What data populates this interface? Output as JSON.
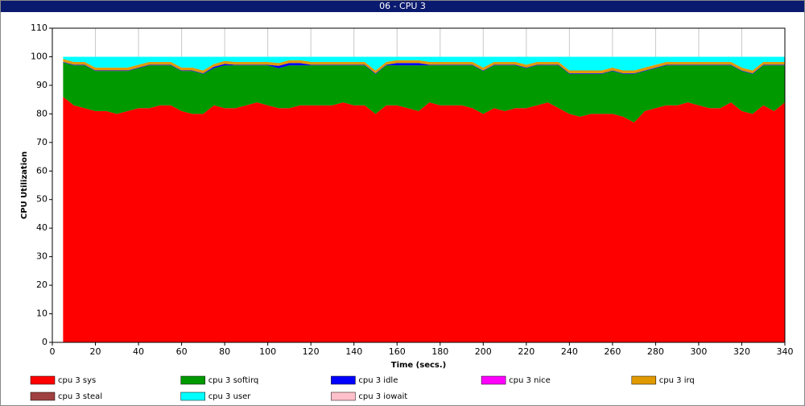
{
  "chart_data": {
    "type": "stacked_area",
    "title": "06 - CPU 3",
    "x_label": "Time (secs.)",
    "y_label": "CPU Utilization",
    "x": [
      5,
      10,
      15,
      20,
      25,
      30,
      35,
      40,
      45,
      50,
      55,
      60,
      65,
      70,
      75,
      80,
      85,
      90,
      95,
      100,
      105,
      110,
      115,
      120,
      125,
      130,
      135,
      140,
      145,
      150,
      155,
      160,
      165,
      170,
      175,
      180,
      185,
      190,
      195,
      200,
      205,
      210,
      215,
      220,
      225,
      230,
      235,
      240,
      245,
      250,
      255,
      260,
      265,
      270,
      275,
      280,
      285,
      290,
      295,
      300,
      305,
      310,
      315,
      320,
      325,
      330,
      335,
      340
    ],
    "xlim": [
      0,
      340
    ],
    "xticks": [
      0,
      20,
      40,
      60,
      80,
      100,
      120,
      140,
      160,
      180,
      200,
      220,
      240,
      260,
      280,
      300,
      320,
      340
    ],
    "ylim": [
      0,
      110
    ],
    "yticks": [
      0,
      10,
      20,
      30,
      40,
      50,
      60,
      70,
      80,
      90,
      100,
      110
    ],
    "grid": true,
    "series": [
      {
        "name": "cpu 3 sys",
        "color": "#ff0000",
        "values": [
          86,
          83,
          82,
          81,
          81,
          80,
          81,
          82,
          82,
          83,
          83,
          81,
          80,
          80,
          83,
          82,
          82,
          83,
          84,
          83,
          82,
          82,
          83,
          83,
          83,
          83,
          84,
          83,
          83,
          80,
          83,
          83,
          82,
          81,
          84,
          83,
          83,
          83,
          82,
          80,
          82,
          81,
          82,
          82,
          83,
          84,
          82,
          80,
          79,
          80,
          80,
          80,
          79,
          77,
          81,
          82,
          83,
          83,
          84,
          83,
          82,
          82,
          84,
          81,
          80,
          83,
          81,
          84
        ]
      },
      {
        "name": "cpu 3 softirq",
        "color": "#009900",
        "values": [
          12,
          14,
          15,
          14,
          14,
          15,
          14,
          14,
          15,
          14,
          14,
          14,
          15,
          14,
          13,
          15,
          15,
          14,
          13,
          14,
          14,
          15,
          14,
          14,
          14,
          14,
          13,
          14,
          14,
          14,
          14,
          14,
          15,
          16,
          13,
          14,
          14,
          14,
          15,
          15,
          15,
          16,
          15,
          14,
          14,
          13,
          15,
          14,
          15,
          14,
          14,
          15,
          15,
          17,
          14,
          14,
          14,
          14,
          13,
          14,
          15,
          15,
          13,
          14,
          14,
          14,
          16,
          13
        ]
      },
      {
        "name": "cpu 3 idle",
        "color": "#0000ff",
        "values": [
          0.2,
          0.2,
          0.2,
          0.2,
          0.2,
          0.2,
          0.2,
          0.2,
          0.2,
          0.2,
          0.2,
          0.2,
          0.2,
          0.2,
          0.5,
          0.5,
          0.2,
          0.2,
          0.2,
          0.2,
          0.8,
          0.8,
          0.8,
          0.2,
          0.2,
          0.2,
          0.2,
          0.2,
          0.2,
          0.2,
          0.2,
          0.8,
          0.8,
          0.8,
          0.2,
          0.2,
          0.2,
          0.2,
          0.2,
          0.2,
          0.2,
          0.2,
          0.2,
          0.2,
          0.2,
          0.2,
          0.2,
          0.2,
          0.2,
          0.2,
          0.2,
          0.2,
          0.2,
          0.2,
          0.2,
          0.2,
          0.2,
          0.2,
          0.2,
          0.2,
          0.2,
          0.2,
          0.2,
          0.2,
          0.2,
          0.2,
          0.2,
          0.2
        ]
      },
      {
        "name": "cpu 3 nice",
        "color": "#ff00ff",
        "values": [
          0,
          0,
          0,
          0,
          0,
          0,
          0,
          0,
          0,
          0,
          0,
          0,
          0,
          0,
          0,
          0,
          0,
          0,
          0,
          0,
          0,
          0,
          0,
          0,
          0,
          0,
          0,
          0,
          0,
          0,
          0,
          0,
          0,
          0,
          0,
          0,
          0,
          0,
          0,
          0,
          0,
          0,
          0,
          0,
          0,
          0,
          0,
          0,
          0,
          0,
          0,
          0,
          0,
          0,
          0,
          0,
          0,
          0,
          0,
          0,
          0,
          0,
          0,
          0,
          0,
          0,
          0,
          0
        ]
      },
      {
        "name": "cpu 3 irq",
        "color": "#e09a00",
        "values": [
          1,
          1,
          1,
          1,
          1,
          1,
          1,
          1,
          1,
          1,
          1,
          1,
          1,
          1,
          1,
          1,
          1,
          1,
          1,
          1,
          1,
          1,
          1,
          1,
          1,
          1,
          1,
          1,
          1,
          1,
          1,
          1,
          1,
          1,
          1,
          1,
          1,
          1,
          1,
          1,
          1,
          1,
          1,
          1,
          1,
          1,
          1,
          1,
          1,
          1,
          1,
          1,
          1,
          1,
          1,
          1,
          1,
          1,
          1,
          1,
          1,
          1,
          1,
          1,
          1,
          1,
          1,
          1
        ]
      },
      {
        "name": "cpu 3 steal",
        "color": "#a04040",
        "values": [
          0,
          0,
          0,
          0,
          0,
          0,
          0,
          0,
          0,
          0,
          0,
          0,
          0,
          0,
          0,
          0,
          0,
          0,
          0,
          0,
          0,
          0,
          0,
          0,
          0,
          0,
          0,
          0,
          0,
          0,
          0,
          0,
          0,
          0,
          0,
          0,
          0,
          0,
          0,
          0,
          0,
          0,
          0,
          0,
          0,
          0,
          0,
          0,
          0,
          0,
          0,
          0,
          0,
          0,
          0,
          0,
          0,
          0,
          0,
          0,
          0,
          0,
          0,
          0,
          0,
          0,
          0,
          0
        ]
      },
      {
        "name": "cpu 3 user",
        "color": "#00ffff",
        "values": [
          0.8,
          1.8,
          1.8,
          3.8,
          3.8,
          3.8,
          3.8,
          2.8,
          1.8,
          1.8,
          1.8,
          3.8,
          3.8,
          4.8,
          2.5,
          1.5,
          1.8,
          1.8,
          1.8,
          1.8,
          2.2,
          1.2,
          1.2,
          1.8,
          1.8,
          1.8,
          1.8,
          1.8,
          1.8,
          4.8,
          1.8,
          1.2,
          1.2,
          1.2,
          1.8,
          1.8,
          1.8,
          1.8,
          1.8,
          3.8,
          1.8,
          1.8,
          1.8,
          2.8,
          1.8,
          1.8,
          1.8,
          4.8,
          4.8,
          4.8,
          4.8,
          3.8,
          4.8,
          4.8,
          3.8,
          2.8,
          1.8,
          1.8,
          1.8,
          1.8,
          1.8,
          1.8,
          1.8,
          3.8,
          4.8,
          1.8,
          1.8,
          1.8
        ]
      },
      {
        "name": "cpu 3 iowait",
        "color": "#ffc0cb",
        "values": [
          0,
          0,
          0,
          0,
          0,
          0,
          0,
          0,
          0,
          0,
          0,
          0,
          0,
          0,
          0,
          0,
          0,
          0,
          0,
          0,
          0,
          0,
          0,
          0,
          0,
          0,
          0,
          0,
          0,
          0,
          0,
          0,
          0,
          0,
          0,
          0,
          0,
          0,
          0,
          0,
          0,
          0,
          0,
          0,
          0,
          0,
          0,
          0,
          0,
          0,
          0,
          0,
          0,
          0,
          0,
          0,
          0,
          0,
          0,
          0,
          0,
          0,
          0,
          0,
          0,
          0,
          0,
          0
        ]
      }
    ]
  }
}
